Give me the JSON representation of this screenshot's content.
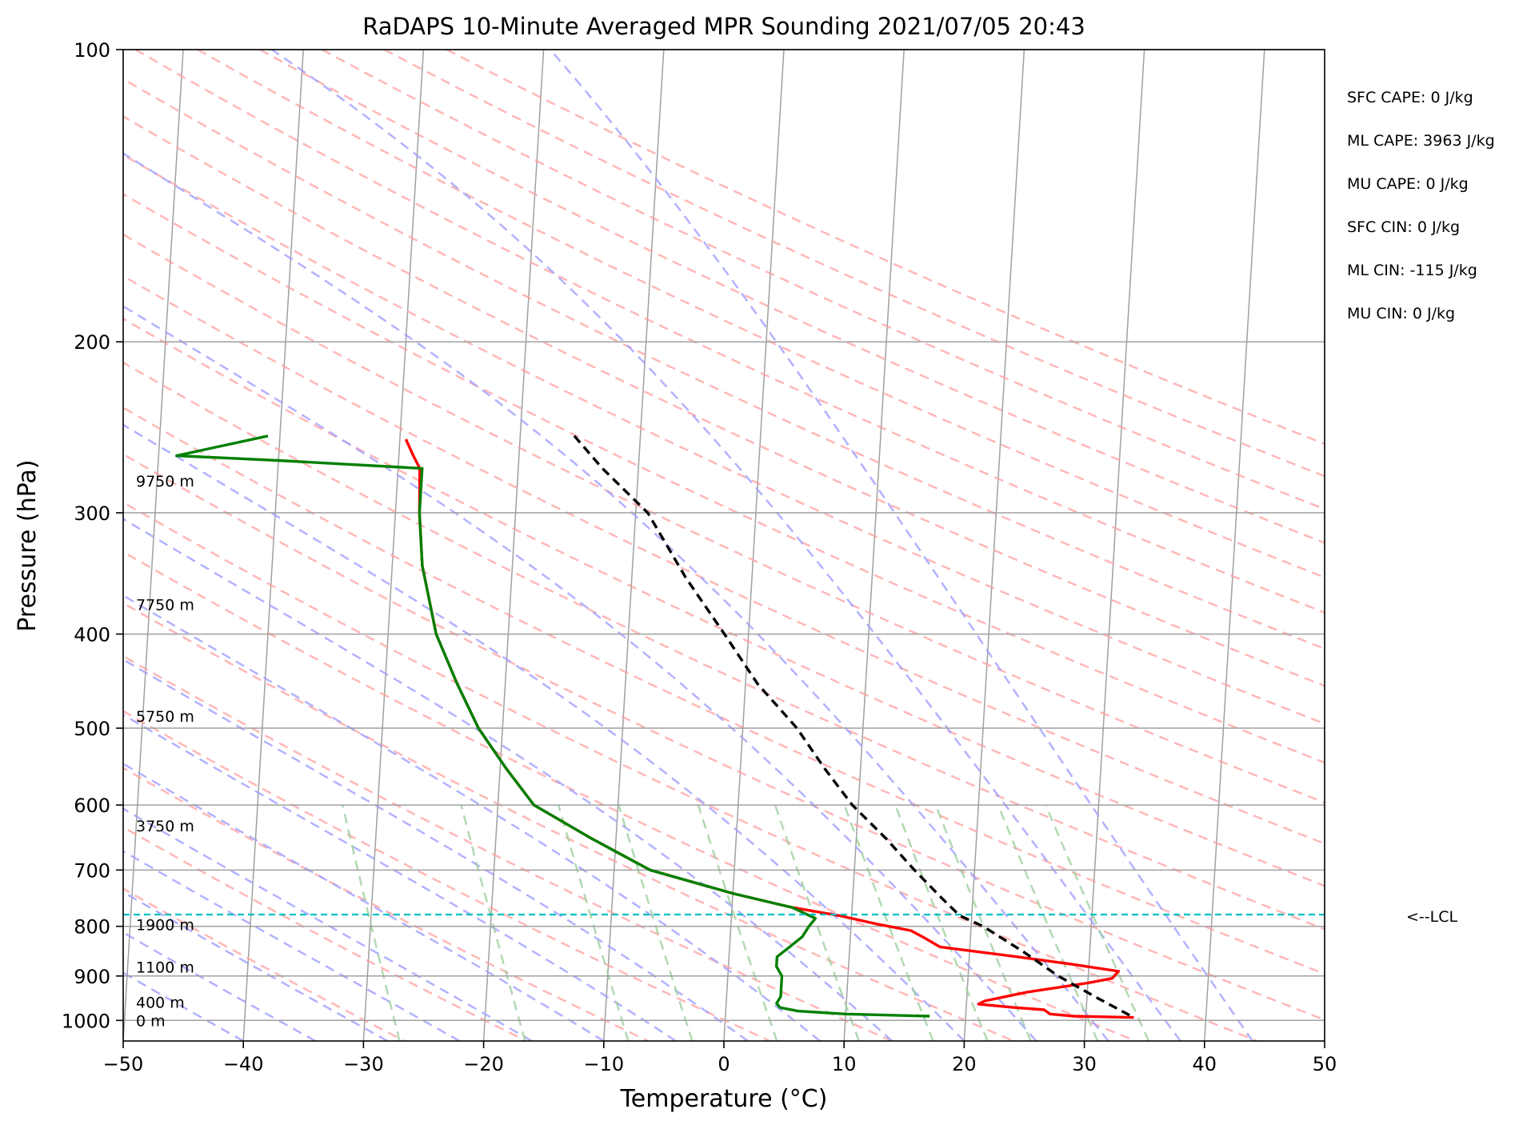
{
  "chart_data": {
    "type": "line",
    "title": "RaDAPS 10-Minute Averaged MPR Sounding 2021/07/05 20:43",
    "xlabel": "Temperature (°C)",
    "ylabel": "Pressure (hPa)",
    "xlim": [
      -50,
      50
    ],
    "ylim": [
      1050,
      100
    ],
    "y_scale": "log",
    "grid": true,
    "x_ticks": [
      -50,
      -40,
      -30,
      -20,
      -10,
      0,
      10,
      20,
      30,
      40,
      50
    ],
    "x_tick_labels": [
      "−50",
      "−40",
      "−30",
      "−20",
      "−10",
      "0",
      "10",
      "20",
      "30",
      "40",
      "50"
    ],
    "y_ticks": [
      100,
      200,
      300,
      400,
      500,
      600,
      700,
      800,
      900,
      1000
    ],
    "y_tick_labels": [
      "100",
      "200",
      "300",
      "400",
      "500",
      "600",
      "700",
      "800",
      "900",
      "1000"
    ],
    "series": [
      {
        "color": "#ff0000",
        "points": [
          [
            -29.5,
            252
          ],
          [
            -28.8,
            262
          ],
          [
            -28.2,
            270
          ],
          [
            -28.0,
            300
          ],
          [
            -27.5,
            340
          ],
          [
            -26.0,
            400
          ],
          [
            -24.0,
            450
          ],
          [
            -22.0,
            500
          ],
          [
            -19.5,
            550
          ],
          [
            -17.0,
            600
          ],
          [
            -12.0,
            650
          ],
          [
            -7.0,
            700
          ],
          [
            0.0,
            740
          ],
          [
            5.0,
            765
          ],
          [
            9.0,
            780
          ],
          [
            12.0,
            795
          ],
          [
            15.0,
            808
          ],
          [
            16.0,
            820
          ],
          [
            17.5,
            840
          ],
          [
            24.0,
            860
          ],
          [
            28.5,
            875
          ],
          [
            32.5,
            890
          ],
          [
            32.0,
            905
          ],
          [
            30.0,
            915
          ],
          [
            25.0,
            935
          ],
          [
            21.5,
            955
          ],
          [
            21.0,
            962
          ],
          [
            24.0,
            970
          ],
          [
            26.5,
            975
          ],
          [
            27.0,
            985
          ],
          [
            29.0,
            990
          ],
          [
            34.0,
            993
          ]
        ]
      },
      {
        "color": "#008000",
        "points": [
          [
            -41.0,
            250
          ],
          [
            -48.5,
            262
          ],
          [
            -40.0,
            265
          ],
          [
            -28.0,
            270
          ],
          [
            -28.0,
            300
          ],
          [
            -27.5,
            340
          ],
          [
            -26.0,
            400
          ],
          [
            -24.0,
            450
          ],
          [
            -22.0,
            500
          ],
          [
            -19.5,
            550
          ],
          [
            -17.0,
            600
          ],
          [
            -12.0,
            650
          ],
          [
            -7.0,
            700
          ],
          [
            0.0,
            740
          ],
          [
            5.0,
            765
          ],
          [
            6.5,
            780
          ],
          [
            7.0,
            785
          ],
          [
            6.5,
            800
          ],
          [
            6.0,
            820
          ],
          [
            5.0,
            840
          ],
          [
            4.0,
            860
          ],
          [
            4.0,
            880
          ],
          [
            4.5,
            900
          ],
          [
            4.5,
            920
          ],
          [
            4.5,
            945
          ],
          [
            4.2,
            960
          ],
          [
            4.5,
            970
          ],
          [
            6.0,
            978
          ],
          [
            10.0,
            985
          ],
          [
            17.0,
            990
          ]
        ]
      },
      {
        "color": "#000000",
        "dashed": true,
        "points": [
          [
            -15.5,
            250
          ],
          [
            -13.0,
            270
          ],
          [
            -9.0,
            300
          ],
          [
            -5.5,
            350
          ],
          [
            -2.0,
            400
          ],
          [
            1.0,
            450
          ],
          [
            4.5,
            500
          ],
          [
            7.0,
            550
          ],
          [
            9.5,
            600
          ],
          [
            12.5,
            650
          ],
          [
            15.0,
            700
          ],
          [
            17.5,
            750
          ],
          [
            19.0,
            780
          ],
          [
            21.0,
            800
          ],
          [
            24.5,
            850
          ],
          [
            27.5,
            900
          ],
          [
            31.0,
            950
          ],
          [
            34.0,
            993
          ]
        ]
      }
    ],
    "lcl": {
      "pressure": 778,
      "label": "<--LCL"
    },
    "height_labels": [
      {
        "label": "9750 m",
        "pressure": 278
      },
      {
        "label": "7750 m",
        "pressure": 373
      },
      {
        "label": "5750 m",
        "pressure": 486
      },
      {
        "label": "3750 m",
        "pressure": 630
      },
      {
        "label": "1900 m",
        "pressure": 797
      },
      {
        "label": "1100 m",
        "pressure": 881
      },
      {
        "label": "400 m",
        "pressure": 958
      },
      {
        "label": "0 m",
        "pressure": 1000
      }
    ],
    "stats": [
      "SFC CAPE: 0 J/kg",
      "ML CAPE: 3963 J/kg",
      "MU CAPE: 0 J/kg",
      "SFC CIN: 0 J/kg",
      "ML CIN: -115 J/kg",
      "MU CIN: 0 J/kg"
    ],
    "colors": {
      "isotherm": "#a0a0a0",
      "dry_adiabat": "#ff9f9f",
      "moist_adiabat": "#9f9fff",
      "mixing_ratio": "#9fcf9f",
      "lcl_line": "#00c0c0"
    }
  }
}
